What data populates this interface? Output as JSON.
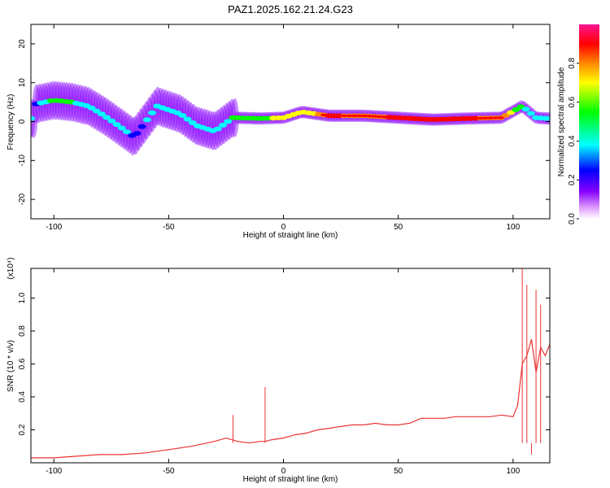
{
  "title": "PAZ1.2025.162.21.24.G23",
  "chart_data": [
    {
      "type": "heatmap",
      "xlabel": "Height of straight line (km)",
      "ylabel": "Frequency (Hz)",
      "xlim": [
        -110,
        116
      ],
      "ylim": [
        -25,
        25
      ],
      "xticks": [
        -100,
        -50,
        0,
        50,
        100
      ],
      "yticks": [
        -20,
        -10,
        0,
        10,
        20
      ],
      "colorbar": {
        "label": "Normalized spectral amplitude",
        "range": [
          0,
          1
        ],
        "ticks": [
          0.0,
          0.2,
          0.4,
          0.6,
          0.8
        ],
        "colors": [
          "#ffffff",
          "#dd99ff",
          "#8800ff",
          "#0000ff",
          "#00ffff",
          "#00ff00",
          "#ffff00",
          "#ff8800",
          "#ff0000",
          "#ff1493"
        ]
      },
      "ridge": [
        {
          "x": -108,
          "f": 4.5,
          "a": 0.35
        },
        {
          "x": -100,
          "f": 5.5,
          "a": 0.55
        },
        {
          "x": -92,
          "f": 5.0,
          "a": 0.5
        },
        {
          "x": -85,
          "f": 4.0,
          "a": 0.45
        },
        {
          "x": -78,
          "f": 1.5,
          "a": 0.5
        },
        {
          "x": -72,
          "f": -1.0,
          "a": 0.45
        },
        {
          "x": -65,
          "f": -4.0,
          "a": 0.35
        },
        {
          "x": -55,
          "f": 4.0,
          "a": 0.45
        },
        {
          "x": -45,
          "f": 2.0,
          "a": 0.5
        },
        {
          "x": -38,
          "f": -1.0,
          "a": 0.4
        },
        {
          "x": -30,
          "f": -2.5,
          "a": 0.4
        },
        {
          "x": -22,
          "f": 1.0,
          "a": 0.5
        },
        {
          "x": -10,
          "f": 0.8,
          "a": 0.55
        },
        {
          "x": 0,
          "f": 1.0,
          "a": 0.7
        },
        {
          "x": 8,
          "f": 2.5,
          "a": 0.6
        },
        {
          "x": 20,
          "f": 1.5,
          "a": 0.85
        },
        {
          "x": 35,
          "f": 1.5,
          "a": 0.8
        },
        {
          "x": 50,
          "f": 1.0,
          "a": 0.85
        },
        {
          "x": 65,
          "f": 0.5,
          "a": 0.9
        },
        {
          "x": 80,
          "f": 0.8,
          "a": 0.85
        },
        {
          "x": 95,
          "f": 1.0,
          "a": 0.8
        },
        {
          "x": 104,
          "f": 4.0,
          "a": 0.5
        },
        {
          "x": 110,
          "f": 1.0,
          "a": 0.45
        },
        {
          "x": 115,
          "f": 0.8,
          "a": 0.4
        }
      ]
    },
    {
      "type": "line",
      "xlabel": "Height of straight line (km)",
      "ylabel": "SNR (10 * v/v)",
      "y_multiplier": "(x10⁴)",
      "xlim": [
        -110,
        116
      ],
      "ylim": [
        0,
        1.18
      ],
      "xticks": [
        -100,
        -50,
        0,
        50,
        100
      ],
      "yticks": [
        0.2,
        0.4,
        0.6,
        0.8,
        1.0
      ],
      "color": "#ee3333",
      "x": [
        -110,
        -100,
        -90,
        -80,
        -70,
        -60,
        -50,
        -40,
        -30,
        -25,
        -20,
        -15,
        -10,
        -8,
        -5,
        0,
        5,
        10,
        15,
        20,
        25,
        30,
        35,
        40,
        45,
        50,
        55,
        60,
        65,
        70,
        75,
        80,
        85,
        90,
        95,
        100,
        102,
        104,
        106,
        108,
        110,
        112,
        114,
        116
      ],
      "values": [
        0.03,
        0.03,
        0.04,
        0.05,
        0.05,
        0.06,
        0.08,
        0.1,
        0.13,
        0.15,
        0.13,
        0.12,
        0.13,
        0.13,
        0.14,
        0.15,
        0.17,
        0.18,
        0.2,
        0.21,
        0.22,
        0.23,
        0.23,
        0.24,
        0.23,
        0.23,
        0.24,
        0.27,
        0.27,
        0.27,
        0.28,
        0.28,
        0.28,
        0.28,
        0.29,
        0.28,
        0.35,
        0.6,
        0.65,
        0.75,
        0.55,
        0.7,
        0.65,
        0.72
      ],
      "spikes": [
        {
          "x": -22,
          "y": 0.29
        },
        {
          "x": -8,
          "y": 0.46
        },
        {
          "x": 104,
          "y": 1.18
        },
        {
          "x": 106,
          "y": 1.08
        },
        {
          "x": 108,
          "y": 0.05
        },
        {
          "x": 110,
          "y": 1.05
        },
        {
          "x": 112,
          "y": 0.96
        }
      ]
    }
  ]
}
